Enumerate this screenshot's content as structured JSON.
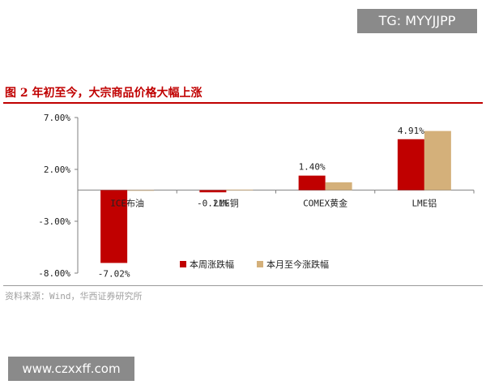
{
  "watermark_top": "TG: MYYJJPP",
  "watermark_bottom": "www.czxxff.com",
  "figure_title": "图 2  年初至今，大宗商品价格大幅上涨",
  "source": "资料来源：Wind，华西证券研究所",
  "colors": {
    "weekly": "#c00000",
    "ytd": "#d4b07a",
    "title": "#c00000"
  },
  "chart_data": {
    "type": "bar",
    "title": "",
    "xlabel": "",
    "ylabel": "",
    "categories": [
      "ICE布油",
      "LME铜",
      "COMEX黄金",
      "LME铝"
    ],
    "series": [
      {
        "name": "本周涨跌幅",
        "values": [
          -7.02,
          -0.21,
          1.4,
          4.91
        ]
      },
      {
        "name": "本月至今涨跌幅",
        "values": [
          0.0,
          0.05,
          0.75,
          5.7
        ]
      }
    ],
    "data_labels": [
      "-7.02%",
      "-0.21%",
      "1.40%",
      "4.91%"
    ],
    "y_ticks": [
      7,
      2,
      -3,
      -8
    ],
    "y_tick_labels": [
      "7.00%",
      "2.00%",
      "-3.00%",
      "-8.00%"
    ],
    "ylim": [
      -8,
      7
    ],
    "legend_position": "bottom-right",
    "grid": false
  }
}
